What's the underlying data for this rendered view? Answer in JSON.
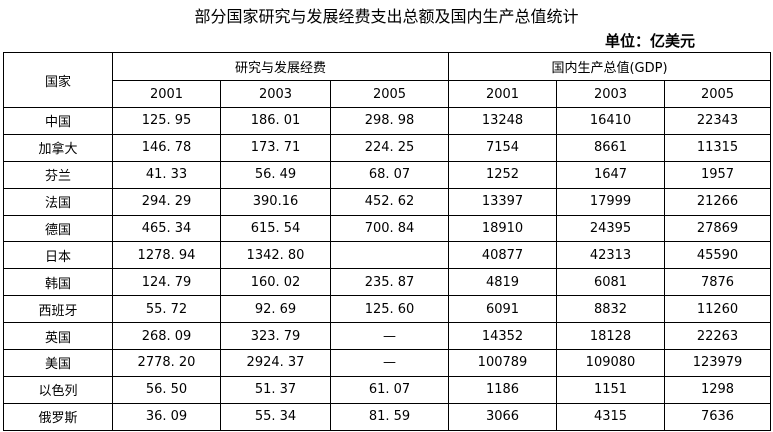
{
  "header": {
    "title": "部分国家研究与发展经费支出总额及国内生产总值统计",
    "unit": "单位：亿美元"
  },
  "table": {
    "country_header": "国家",
    "groups": [
      "研究与发展经费",
      "国内生产总值(GDP)"
    ],
    "years": [
      [
        "2001",
        "2003",
        "2005"
      ],
      [
        "2001",
        "2003",
        "2005"
      ]
    ],
    "rows": [
      [
        "中国",
        "125. 95",
        "186. 01",
        "298. 98",
        "13248",
        "16410",
        "22343"
      ],
      [
        "加拿大",
        "146. 78",
        "173. 71",
        "224. 25",
        "7154",
        "8661",
        "11315"
      ],
      [
        "芬兰",
        "41. 33",
        "56. 49",
        "68. 07",
        "1252",
        "1647",
        "1957"
      ],
      [
        "法国",
        "294. 29",
        "390.16",
        "452. 62",
        "13397",
        "17999",
        "21266"
      ],
      [
        "德国",
        "465. 34",
        "615. 54",
        "700. 84",
        "18910",
        "24395",
        "27869"
      ],
      [
        "日本",
        "1278. 94",
        "1342. 80",
        null,
        "40877",
        "42313",
        "45590"
      ],
      [
        "韩国",
        "124. 79",
        "160. 02",
        "235. 87",
        "4819",
        "6081",
        "7876"
      ],
      [
        "西班牙",
        "55. 72",
        "92. 69",
        "125. 60",
        "6091",
        "8832",
        "11260"
      ],
      [
        "英国",
        "268. 09",
        "323. 79",
        "—",
        "14352",
        "18128",
        "22263"
      ],
      [
        "美国",
        "2778. 20",
        "2924. 37",
        "—",
        "100789",
        "109080",
        "123979"
      ],
      [
        "以色列",
        "56. 50",
        "51. 37",
        "61. 07",
        "1186",
        "1151",
        "1298"
      ],
      [
        "俄罗斯",
        "36. 09",
        "55. 34",
        "81. 59",
        "3066",
        "4315",
        "7636"
      ]
    ]
  }
}
